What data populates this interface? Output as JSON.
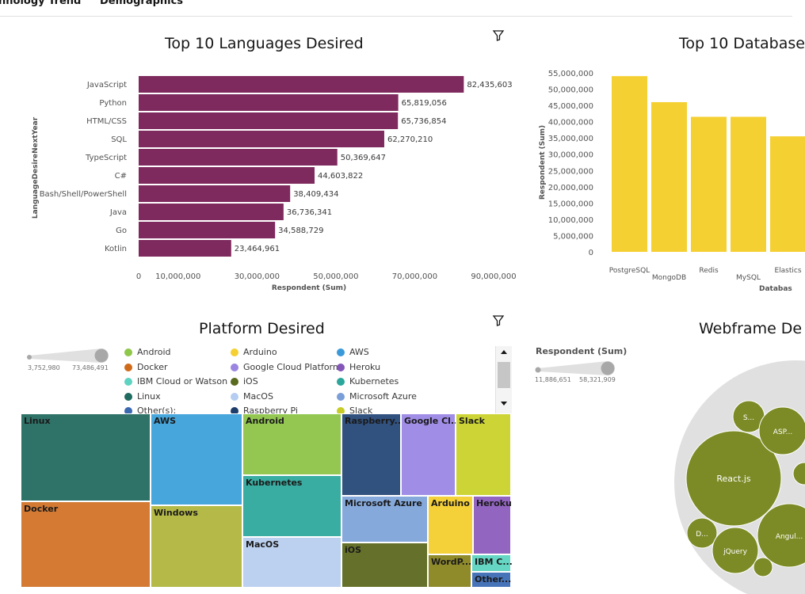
{
  "tabs": [
    {
      "label": "nnology Trend",
      "active": true
    },
    {
      "label": "Demographics",
      "active": false
    }
  ],
  "colors": {
    "languages_bar": "#7f2a5e",
    "databases_bar": "#f5d033",
    "tab_accent": "#0f62fe",
    "bubble_fill": "#7c8b25",
    "bubble_bg": "#e0e0e0"
  },
  "languages_chart": {
    "title": "Top 10 Languages Desired",
    "icon": "filter-icon",
    "chart_data": {
      "type": "bar",
      "orientation": "horizontal",
      "categories": [
        "JavaScript",
        "Python",
        "HTML/CSS",
        "SQL",
        "TypeScript",
        "C#",
        "Bash/Shell/PowerShell",
        "Java",
        "Go",
        "Kotlin"
      ],
      "values": [
        82435603,
        65819056,
        65736854,
        62270210,
        50369647,
        44603822,
        38409434,
        36736341,
        34588729,
        23464961
      ],
      "value_labels": [
        "82,435,603",
        "65,819,056",
        "65,736,854",
        "62,270,210",
        "50,369,647",
        "44,603,822",
        "38,409,434",
        "36,736,341",
        "34,588,729",
        "23,464,961"
      ],
      "xlabel": "Respondent (Sum)",
      "ylabel": "LanguageDesireNextYear",
      "x_ticks": [
        "0",
        "10,000,000",
        "30,000,000",
        "50,000,000",
        "70,000,000",
        "90,000,000"
      ],
      "x_tick_values": [
        0,
        10000000,
        30000000,
        50000000,
        70000000,
        90000000
      ],
      "xlim": [
        0,
        90000000
      ]
    }
  },
  "databases_chart": {
    "title": "Top 10 Database",
    "chart_data": {
      "type": "bar",
      "orientation": "vertical",
      "categories": [
        "PostgreSQL",
        "MongoDB",
        "Redis",
        "MySQL",
        "Elastics"
      ],
      "values": [
        54000000,
        46000000,
        41500000,
        41500000,
        35500000
      ],
      "ylabel": "Respondent (Sum)",
      "xlabel": "Databas",
      "y_ticks": [
        "0",
        "5,000,000",
        "10,000,000",
        "15,000,000",
        "20,000,000",
        "25,000,000",
        "30,000,000",
        "35,000,000",
        "40,000,000",
        "45,000,000",
        "50,000,000",
        "55,000,000"
      ],
      "y_tick_values": [
        0,
        5000000,
        10000000,
        15000000,
        20000000,
        25000000,
        30000000,
        35000000,
        40000000,
        45000000,
        50000000,
        55000000
      ],
      "ylim": [
        0,
        55000000
      ]
    }
  },
  "platform_chart": {
    "title": "Platform Desired",
    "icon": "filter-icon",
    "size_legend": {
      "min": "3,752,980",
      "max": "73,486,491"
    },
    "legend": [
      {
        "label": "Android",
        "color": "#8fc74a"
      },
      {
        "label": "Arduino",
        "color": "#f5d033"
      },
      {
        "label": "AWS",
        "color": "#3a9ad9"
      },
      {
        "label": "Docker",
        "color": "#d06a1b"
      },
      {
        "label": "Google Cloud Platform",
        "color": "#9a85e0"
      },
      {
        "label": "Heroku",
        "color": "#8356b8"
      },
      {
        "label": "IBM Cloud or Watson",
        "color": "#5ed3c1"
      },
      {
        "label": "iOS",
        "color": "#5a6a1e"
      },
      {
        "label": "Kubernetes",
        "color": "#2ba69a"
      },
      {
        "label": "Linux",
        "color": "#1f6b60"
      },
      {
        "label": "MacOS",
        "color": "#b5cdf0"
      },
      {
        "label": "Microsoft Azure",
        "color": "#7a9ed8"
      },
      {
        "label": "Other(s):",
        "color": "#3b69b0"
      },
      {
        "label": "Raspberry Pi",
        "color": "#1f3d6b"
      },
      {
        "label": "Slack",
        "color": "#c7cc26"
      }
    ],
    "treemap": [
      {
        "label": "Linux",
        "color": "#2f7268"
      },
      {
        "label": "Docker",
        "color": "#d47a33"
      },
      {
        "label": "AWS",
        "color": "#47a6dc"
      },
      {
        "label": "Windows",
        "color": "#b4b947"
      },
      {
        "label": "Android",
        "color": "#93c752"
      },
      {
        "label": "Kubernetes",
        "color": "#3aada2"
      },
      {
        "label": "MacOS",
        "color": "#bcd0ef"
      },
      {
        "label": "Raspberry...",
        "color": "#31517f"
      },
      {
        "label": "Google Cl...",
        "color": "#a08de6"
      },
      {
        "label": "Slack",
        "color": "#ccd535"
      },
      {
        "label": "Microsoft Azure",
        "color": "#86a9dc"
      },
      {
        "label": "Arduino",
        "color": "#f4d039"
      },
      {
        "label": "Heroku",
        "color": "#9265c0"
      },
      {
        "label": "iOS",
        "color": "#65712a"
      },
      {
        "label": "WordP...",
        "color": "#8f8a2a"
      },
      {
        "label": "IBM C...",
        "color": "#65d6c4"
      },
      {
        "label": "Other...",
        "color": "#4774b9"
      }
    ]
  },
  "webframe_chart": {
    "title": "Webframe De",
    "size_legend": {
      "title": "Respondent (Sum)",
      "min": "11,886,651",
      "max": "58,321,909"
    },
    "bubbles": [
      {
        "label": "React.js"
      },
      {
        "label": "S..."
      },
      {
        "label": "ASP..."
      },
      {
        "label": "D..."
      },
      {
        "label": "jQuery"
      },
      {
        "label": "Angul..."
      }
    ]
  }
}
